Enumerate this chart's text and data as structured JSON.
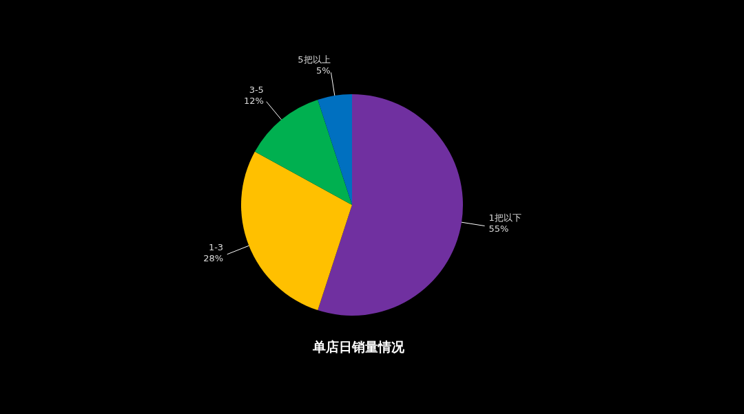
{
  "chart_data": {
    "type": "pie",
    "title": "单店日销量情况",
    "categories": [
      "1把以下",
      "1-3",
      "3-5",
      "5把以上"
    ],
    "values": [
      55,
      28,
      12,
      5
    ],
    "colors": [
      "#7030a0",
      "#ffc000",
      "#00b050",
      "#0070c0"
    ],
    "value_labels": [
      "55%",
      "28%",
      "12%",
      "5%"
    ]
  }
}
